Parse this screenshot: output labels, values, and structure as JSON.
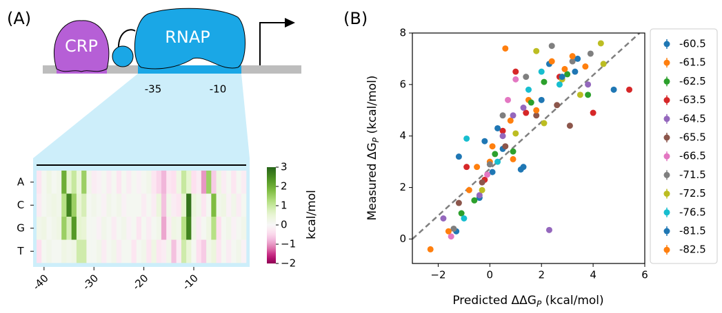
{
  "diagram": {
    "proteins": [
      "CRP",
      "RNAP"
    ],
    "promoter_elements": [
      "-35",
      "-10"
    ]
  },
  "chart_data": [
    {
      "type": "heatmap",
      "panel_label": "(A)",
      "x": [
        -41,
        -40,
        -39,
        -38,
        -37,
        -36,
        -35,
        -34,
        -33,
        -32,
        -31,
        -30,
        -29,
        -28,
        -27,
        -26,
        -25,
        -24,
        -23,
        -22,
        -21,
        -20,
        -19,
        -18,
        -17,
        -16,
        -15,
        -14,
        -13,
        -12,
        -11,
        -10,
        -9,
        -8,
        -7,
        -6,
        -5,
        -4,
        -3,
        -2,
        -1,
        0
      ],
      "xlim": [
        -41.5,
        0.5
      ],
      "xticks": [
        -40,
        -30,
        -20,
        -10
      ],
      "rows": [
        "A",
        "C",
        "G",
        "T"
      ],
      "values": [
        [
          -0.3,
          0.1,
          0.3,
          0.1,
          0.2,
          2.0,
          0.6,
          1.0,
          0.4,
          1.5,
          0.2,
          -0.2,
          -0.1,
          0.1,
          -0.2,
          0.1,
          -0.3,
          0.1,
          -0.2,
          0.1,
          -0.1,
          0.1,
          0.2,
          -0.3,
          -0.5,
          -0.8,
          -0.3,
          -0.4,
          0.3,
          1.0,
          0.6,
          -0.4,
          -0.2,
          -1.0,
          1.5,
          -0.6,
          0.3,
          -0.2,
          0.1,
          -0.3,
          0.1,
          -0.2
        ],
        [
          -0.2,
          0.1,
          0.2,
          0.3,
          0.2,
          1.2,
          2.6,
          1.5,
          0.5,
          0.8,
          0.1,
          0.2,
          0.1,
          -0.1,
          0.2,
          0.1,
          0.2,
          -0.1,
          0.1,
          0.1,
          0.1,
          -0.2,
          0.1,
          -0.2,
          0.4,
          -0.7,
          0.2,
          -0.2,
          -0.3,
          0.6,
          2.8,
          0.4,
          0.2,
          -0.3,
          0.1,
          1.8,
          0.2,
          0.3,
          -0.1,
          0.2,
          -0.2,
          0.1
        ],
        [
          0.2,
          0.3,
          0.1,
          0.2,
          0.3,
          1.5,
          0.8,
          2.3,
          0.6,
          0.5,
          0.1,
          0.1,
          -0.1,
          0.2,
          0.1,
          -0.2,
          0.1,
          0.2,
          -0.1,
          0.1,
          -0.3,
          0.1,
          -0.2,
          0.1,
          0.2,
          -0.9,
          -0.2,
          0.3,
          0.2,
          1.2,
          2.6,
          0.3,
          -0.2,
          0.1,
          0.3,
          1.2,
          -0.4,
          0.1,
          0.2,
          -0.1,
          0.1,
          0.2
        ],
        [
          -0.4,
          0.1,
          0.2,
          0.1,
          0.1,
          0.3,
          0.2,
          0.3,
          0.9,
          0.9,
          0.1,
          0.1,
          0.2,
          -0.2,
          0.1,
          0.2,
          -0.2,
          0.1,
          0.1,
          -0.3,
          0.1,
          0.2,
          -0.3,
          0.3,
          -0.3,
          -0.2,
          0.2,
          -0.7,
          -0.2,
          0.9,
          0.5,
          0.1,
          -0.4,
          -0.6,
          0.2,
          0.4,
          -0.3,
          0.1,
          -0.2,
          0.1,
          0.2,
          -0.1
        ]
      ],
      "colormap": "PiYG",
      "colorbar": {
        "label": "kcal/mol",
        "lim": [
          -2,
          3
        ],
        "ticks": [
          3,
          2,
          1,
          0,
          {
            "value": -1,
            "label": "−1"
          },
          {
            "value": -2,
            "label": "−2"
          }
        ]
      }
    },
    {
      "type": "scatter",
      "panel_label": "(B)",
      "xlabel": [
        "Predicted ΔΔG",
        "P",
        " (kcal/mol)"
      ],
      "ylabel": [
        "Measured ΔG",
        "P",
        " (kcal/mol)"
      ],
      "xlim": [
        -3,
        6
      ],
      "ylim": [
        -0.95,
        8
      ],
      "xticks": [
        {
          "value": -2,
          "label": "−2"
        },
        0,
        2,
        4,
        6
      ],
      "yticks": [
        0,
        2,
        4,
        6,
        8
      ],
      "fit_line": {
        "x": [
          -3,
          5.8
        ],
        "y": [
          0,
          8
        ]
      },
      "legend": "outside right",
      "series": [
        {
          "name": "-60.5",
          "color": "#1f77b4",
          "x": [
            -1.3,
            -0.4,
            0.1,
            0.5,
            1.2,
            2.3,
            3.3,
            4.8
          ],
          "y": [
            0.3,
            1.6,
            2.6,
            3.5,
            2.7,
            6.8,
            6.5,
            5.8
          ]
        },
        {
          "name": "-61.5",
          "color": "#ff7f0e",
          "x": [
            -2.3,
            -0.8,
            0,
            0.6,
            0.8,
            1.5,
            2.4,
            3.7
          ],
          "y": [
            -0.4,
            1.9,
            3.0,
            7.4,
            4.6,
            5.4,
            6.9,
            6.7
          ]
        },
        {
          "name": "-62.5",
          "color": "#2ca02c",
          "x": [
            -1.1,
            -0.6,
            0.2,
            0.9,
            1.6,
            2.1,
            3,
            3.8
          ],
          "y": [
            1.0,
            1.5,
            3.3,
            3.4,
            5.3,
            6.1,
            6.4,
            5.6
          ]
        },
        {
          "name": "-63.5",
          "color": "#d62728",
          "x": [
            -0.9,
            -0.2,
            0.5,
            1.4,
            2.7,
            4,
            5.4,
            1.0
          ],
          "y": [
            2.8,
            2.3,
            4.2,
            4.9,
            6.3,
            4.9,
            5.8,
            6.5
          ]
        },
        {
          "name": "-64.5",
          "color": "#9467bd",
          "x": [
            -1.8,
            -0.4,
            0.5,
            1.3,
            2.3,
            3.8,
            0.9
          ],
          "y": [
            0.8,
            1.7,
            4.0,
            5.1,
            0.35,
            6.0,
            4.8
          ]
        },
        {
          "name": "-65.5",
          "color": "#8c564b",
          "x": [
            -1.2,
            -0.3,
            0.6,
            1.8,
            2.6,
            3.1
          ],
          "y": [
            1.4,
            2.2,
            3.6,
            4.8,
            5.2,
            4.4
          ]
        },
        {
          "name": "-66.5",
          "color": "#e377c2",
          "x": [
            -1.5,
            -0.1,
            0.7,
            1.0
          ],
          "y": [
            0.1,
            2.5,
            5.4,
            6.2
          ]
        },
        {
          "name": "-71.5",
          "color": "#7f7f7f",
          "x": [
            -1.4,
            0,
            0.5,
            1.4,
            2.4,
            3.2,
            3.9
          ],
          "y": [
            0.4,
            2.9,
            4.8,
            6.3,
            7.5,
            6.9,
            7.2
          ]
        },
        {
          "name": "-72.5",
          "color": "#bcbd22",
          "x": [
            -0.3,
            1.0,
            1.8,
            2.1,
            2.8,
            3.5,
            4.4,
            4.3
          ],
          "y": [
            1.9,
            4.1,
            7.3,
            4.5,
            6.2,
            5.6,
            6.8,
            7.6
          ]
        },
        {
          "name": "-76.5",
          "color": "#17becf",
          "x": [
            -1.0,
            -0.9,
            0.3,
            1.5,
            2.0,
            2.7
          ],
          "y": [
            0.8,
            3.9,
            3.0,
            5.8,
            6.5,
            6.0
          ]
        },
        {
          "name": "-81.5",
          "color": "#1f77b4",
          "x": [
            -1.2,
            -0.2,
            0.3,
            1.3,
            2.0,
            2.8,
            3.4
          ],
          "y": [
            3.2,
            3.8,
            4.3,
            2.8,
            5.4,
            6.3,
            7.0
          ]
        },
        {
          "name": "-82.5",
          "color": "#ff7f0e",
          "x": [
            -1.6,
            -0.5,
            0.1,
            0.9,
            1.8,
            2.9,
            3.2
          ],
          "y": [
            0.3,
            2.8,
            3.6,
            3.1,
            5.0,
            6.6,
            7.1
          ]
        }
      ]
    }
  ]
}
